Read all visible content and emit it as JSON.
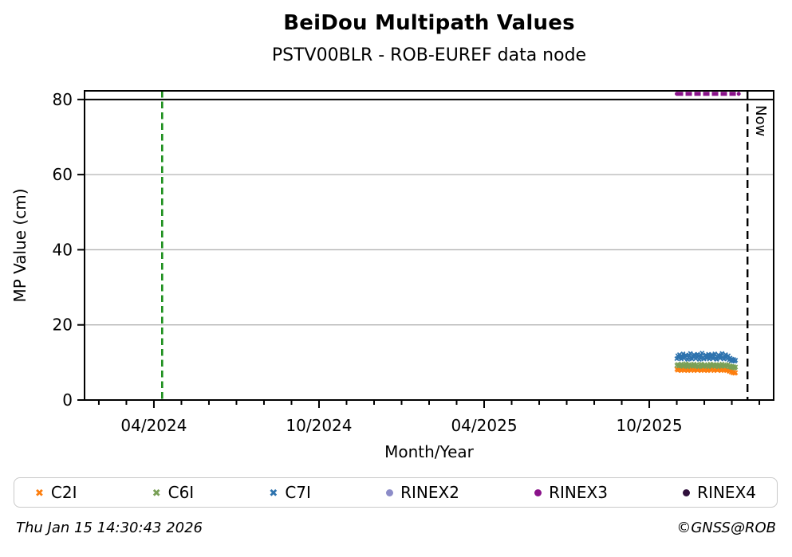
{
  "header": {
    "title": "BeiDou Multipath Values",
    "subtitle": "PSTV00BLR - ROB-EUREF data node"
  },
  "footer": {
    "timestamp": "Thu Jan 15 14:30:43 2026",
    "credit": "©GNSS@ROB"
  },
  "chart_data": {
    "type": "scatter",
    "title": "BeiDou Multipath Values",
    "subtitle": "PSTV00BLR - ROB-EUREF data node",
    "xlabel": "Month/Year",
    "ylabel": "MP Value (cm)",
    "x_axis": {
      "unit": "months since 2024-04",
      "min": -2.52,
      "max": 22.52,
      "major_ticks": [
        {
          "pos": 0,
          "label": "04/2024"
        },
        {
          "pos": 6,
          "label": "10/2024"
        },
        {
          "pos": 12,
          "label": "04/2025"
        },
        {
          "pos": 18,
          "label": "10/2025"
        }
      ],
      "minor_tick_from": -2,
      "minor_tick_to": 22,
      "minor_tick_step": 1
    },
    "y_axis": {
      "min": 0,
      "max": 82.3,
      "ticks": [
        0,
        20,
        40,
        60,
        80
      ],
      "gridlines": [
        20,
        40,
        60
      ],
      "gridline_color": "#b3b3b3",
      "limit_line": 80,
      "limit_line_color": "#000000"
    },
    "start_line": {
      "pos": 0.3,
      "color": "#1d8f1d",
      "style": "dashed"
    },
    "now_line": {
      "pos": 21.57,
      "label": "Now",
      "color": "#000000",
      "style": "dashed"
    },
    "series": [
      {
        "name": "C2I",
        "marker": "x",
        "color": "#fd7e0e",
        "x_start": 19.0,
        "x_step": 0.0329,
        "values": [
          8.2,
          7.9,
          8.3,
          8.0,
          8.4,
          7.8,
          8.1,
          8.3,
          7.9,
          8.2,
          8.0,
          8.4,
          7.8,
          8.1,
          8.3,
          8.0,
          7.9,
          8.2,
          8.4,
          7.8,
          8.0,
          8.3,
          8.1,
          7.9,
          8.2,
          8.0,
          8.4,
          7.8,
          8.1,
          8.3,
          7.9,
          8.2,
          8.0,
          8.4,
          7.8,
          8.0,
          8.3,
          8.1,
          7.9,
          8.2,
          8.4,
          7.8,
          8.0,
          8.3,
          8.1,
          7.9,
          8.2,
          8.0,
          8.4,
          7.8,
          8.1,
          8.3,
          7.9,
          8.2,
          8.0,
          7.8,
          8.1,
          7.9,
          7.6,
          7.8,
          7.4,
          7.7,
          7.2,
          7.5,
          7.1,
          7.3
        ]
      },
      {
        "name": "C6I",
        "marker": "x",
        "color": "#79a057",
        "x_start": 19.0,
        "x_step": 0.0329,
        "values": [
          9.2,
          9.5,
          9.0,
          9.4,
          9.1,
          9.6,
          9.3,
          8.9,
          9.4,
          9.2,
          9.7,
          9.1,
          8.8,
          9.3,
          9.5,
          9.0,
          9.4,
          9.2,
          8.9,
          9.6,
          9.1,
          9.3,
          9.5,
          9.0,
          8.8,
          9.4,
          9.2,
          9.6,
          9.1,
          8.9,
          9.3,
          9.5,
          9.2,
          9.0,
          9.4,
          8.8,
          9.1,
          9.6,
          9.3,
          9.0,
          9.2,
          9.5,
          8.9,
          9.4,
          9.1,
          9.3,
          8.8,
          9.5,
          9.2,
          9.0,
          9.6,
          9.1,
          9.4,
          8.9,
          9.2,
          9.3,
          9.0,
          9.5,
          8.8,
          9.1,
          8.7,
          9.0,
          8.6,
          8.9,
          8.5,
          8.8
        ]
      },
      {
        "name": "C7I",
        "marker": "x",
        "color": "#2e73ae",
        "x_start": 19.0,
        "x_step": 0.0329,
        "values": [
          11.0,
          11.8,
          11.2,
          12.1,
          11.5,
          10.9,
          11.6,
          12.3,
          11.1,
          11.4,
          12.0,
          11.7,
          10.8,
          11.3,
          11.9,
          12.4,
          11.2,
          10.9,
          11.5,
          12.1,
          11.8,
          11.0,
          11.4,
          12.2,
          11.6,
          10.8,
          11.2,
          11.9,
          12.5,
          11.3,
          10.9,
          11.7,
          12.0,
          11.1,
          11.5,
          12.2,
          10.9,
          11.3,
          11.8,
          12.1,
          11.0,
          11.6,
          12.3,
          11.2,
          10.8,
          11.4,
          12.0,
          11.7,
          11.1,
          11.9,
          12.4,
          11.3,
          10.9,
          11.6,
          12.1,
          11.4,
          11.0,
          11.8,
          10.7,
          11.2,
          10.5,
          10.9,
          10.4,
          10.8,
          10.3,
          10.6
        ]
      },
      {
        "name": "RINEX2",
        "marker": "circle",
        "color": "#8c8cc8",
        "values": []
      },
      {
        "name": "RINEX3",
        "marker": "circle",
        "color": "#8a128a",
        "values": [],
        "availability_line": {
          "y": 81.5,
          "x_start": 19.0,
          "x_end": 21.25
        }
      },
      {
        "name": "RINEX4",
        "marker": "circle",
        "color": "#30103c",
        "values": []
      }
    ],
    "legend": {
      "position": "bottom",
      "entries": [
        "C2I",
        "C6I",
        "C7I",
        "RINEX2",
        "RINEX3",
        "RINEX4"
      ]
    },
    "grid": "horizontal-only"
  }
}
